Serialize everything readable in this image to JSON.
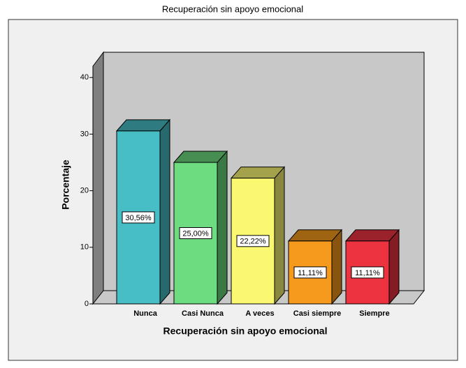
{
  "chart_data": {
    "type": "bar3d",
    "title": "Recuperación sin apoyo emocional",
    "x_label": "Recuperación sin apoyo emocional",
    "y_label": "Porcentaje",
    "categories": [
      "Nunca",
      "Casi Nunca",
      "A veces",
      "Casi siempre",
      "Siempre"
    ],
    "values": [
      30.56,
      25.0,
      22.22,
      11.11,
      11.11
    ],
    "value_labels": [
      "30,56%",
      "25,00%",
      "22,22%",
      "11,11%",
      "11,11%"
    ],
    "colors": [
      "#47bec6",
      "#6ddb7f",
      "#faf770",
      "#f59a1c",
      "#ee3340"
    ],
    "ylim": [
      0,
      42
    ],
    "yticks": [
      0,
      10,
      20,
      30,
      40
    ]
  }
}
